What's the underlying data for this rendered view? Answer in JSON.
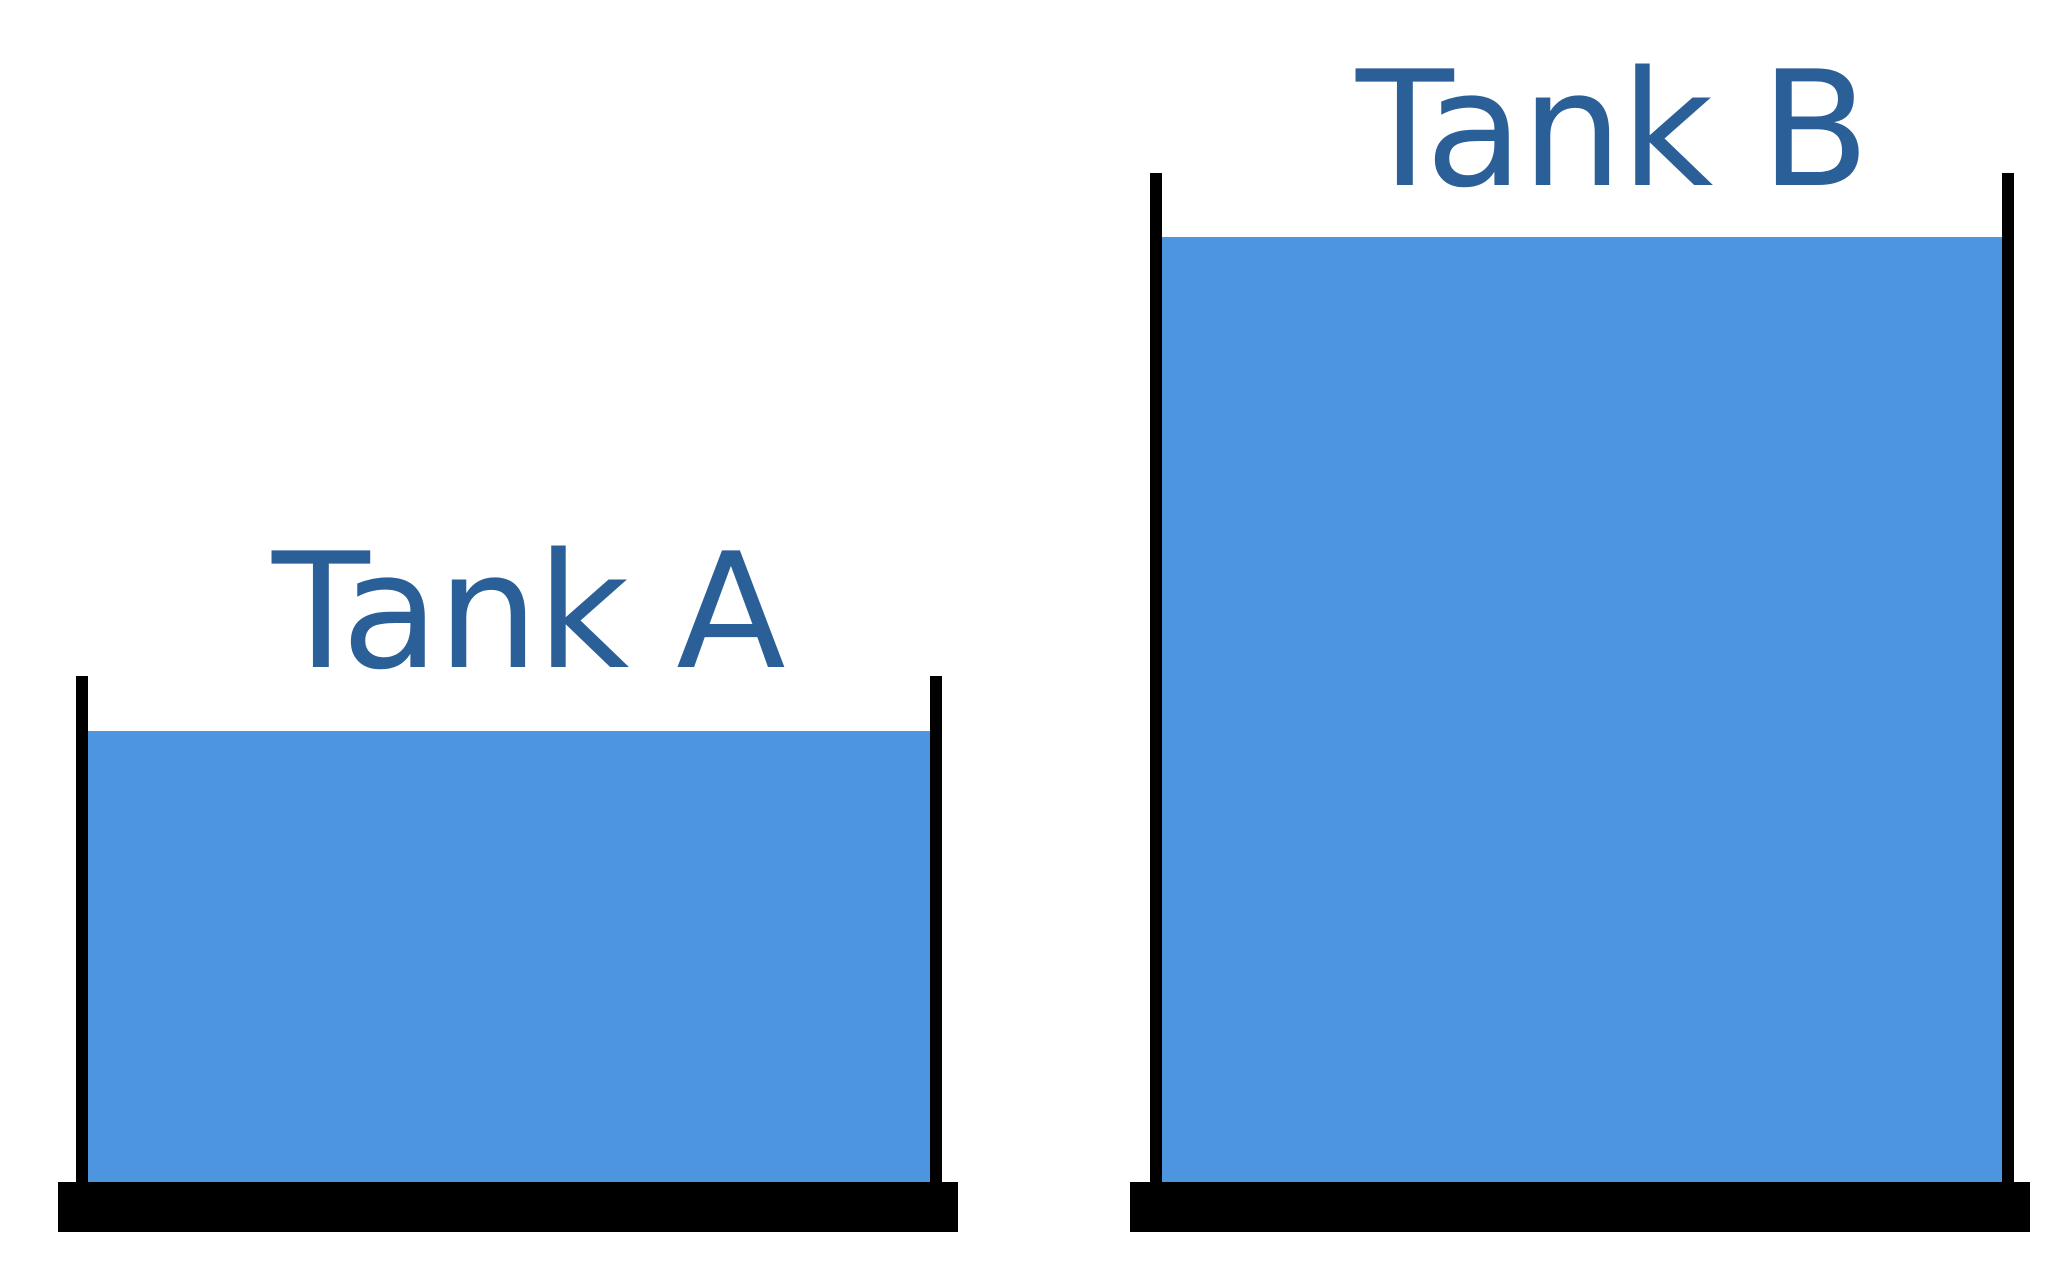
{
  "tanks": [
    {
      "label": "Tank A"
    },
    {
      "label": "Tank B"
    }
  ],
  "colors": {
    "label": "#2b5f98",
    "water": "#4e95df",
    "walls": "#000000"
  }
}
